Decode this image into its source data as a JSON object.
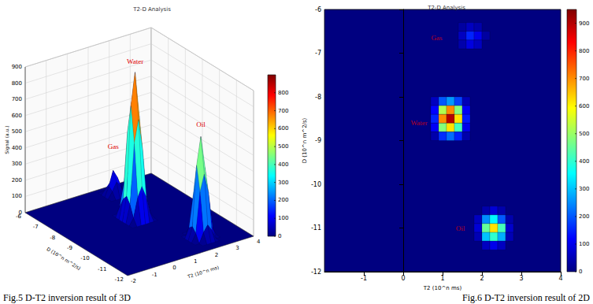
{
  "chart_data": [
    {
      "type": "surface3d",
      "title": "T2-D Analysis",
      "caption": "Fig.5 D-T2 inversion result of 3D",
      "x_label": "T2 (10^n ms)",
      "y_label": "D (10^n m^2/s)",
      "z_label": "Signal (a.u.)",
      "xlim": [
        -2,
        4
      ],
      "xticks": [
        -2,
        -1,
        0,
        1,
        2,
        3,
        4
      ],
      "ylim": [
        -12,
        -6
      ],
      "yticks": [
        -12,
        -11,
        -10,
        -9,
        -8,
        -7,
        -6
      ],
      "zlim": [
        0,
        900
      ],
      "zticks": [
        0,
        100,
        200,
        300,
        400,
        500,
        600,
        700,
        800,
        900
      ],
      "colorbar_lim": [
        0,
        900
      ],
      "colorbar_ticks": [
        0,
        100,
        200,
        300,
        400,
        500,
        600,
        700,
        800
      ],
      "cell_size": [
        0.2,
        0.2
      ],
      "cells": [
        [
          0.8,
          -8.1,
          60
        ],
        [
          1.0,
          -8.1,
          200
        ],
        [
          1.2,
          -8.1,
          260
        ],
        [
          1.4,
          -8.1,
          180
        ],
        [
          1.6,
          -8.1,
          50
        ],
        [
          0.8,
          -8.3,
          120
        ],
        [
          1.0,
          -8.3,
          520
        ],
        [
          1.2,
          -8.3,
          700
        ],
        [
          1.4,
          -8.3,
          480
        ],
        [
          1.6,
          -8.3,
          110
        ],
        [
          0.8,
          -8.5,
          150
        ],
        [
          1.0,
          -8.5,
          700
        ],
        [
          1.2,
          -8.5,
          900
        ],
        [
          1.4,
          -8.5,
          620
        ],
        [
          1.6,
          -8.5,
          140
        ],
        [
          0.8,
          -8.7,
          110
        ],
        [
          1.0,
          -8.7,
          480
        ],
        [
          1.2,
          -8.7,
          620
        ],
        [
          1.4,
          -8.7,
          420
        ],
        [
          1.6,
          -8.7,
          100
        ],
        [
          0.8,
          -8.9,
          40
        ],
        [
          1.0,
          -8.9,
          160
        ],
        [
          1.2,
          -8.9,
          220
        ],
        [
          1.4,
          -8.9,
          150
        ],
        [
          1.6,
          -8.9,
          40
        ],
        [
          1.5,
          -6.4,
          30
        ],
        [
          1.7,
          -6.4,
          60
        ],
        [
          1.9,
          -6.4,
          40
        ],
        [
          1.5,
          -6.6,
          60
        ],
        [
          1.7,
          -6.6,
          150
        ],
        [
          1.9,
          -6.6,
          100
        ],
        [
          2.1,
          -6.6,
          30
        ],
        [
          1.5,
          -6.8,
          40
        ],
        [
          1.7,
          -6.8,
          90
        ],
        [
          1.9,
          -6.8,
          60
        ],
        [
          2.1,
          -10.6,
          40
        ],
        [
          2.3,
          -10.6,
          80
        ],
        [
          2.5,
          -10.6,
          40
        ],
        [
          1.9,
          -10.8,
          60
        ],
        [
          2.1,
          -10.8,
          250
        ],
        [
          2.3,
          -10.8,
          350
        ],
        [
          2.5,
          -10.8,
          200
        ],
        [
          2.7,
          -10.8,
          40
        ],
        [
          1.9,
          -11.0,
          80
        ],
        [
          2.1,
          -11.0,
          450
        ],
        [
          2.3,
          -11.0,
          620
        ],
        [
          2.5,
          -11.0,
          420
        ],
        [
          2.7,
          -11.0,
          70
        ],
        [
          1.9,
          -11.2,
          50
        ],
        [
          2.1,
          -11.2,
          300
        ],
        [
          2.3,
          -11.2,
          400
        ],
        [
          2.5,
          -11.2,
          280
        ],
        [
          2.7,
          -11.2,
          50
        ],
        [
          2.1,
          -11.4,
          60
        ],
        [
          2.3,
          -11.4,
          100
        ],
        [
          2.5,
          -11.4,
          60
        ]
      ],
      "annotations": [
        {
          "text": "Gas",
          "x": 1.7,
          "y": -6.6,
          "z": 260
        },
        {
          "text": "Water",
          "x": 1.2,
          "y": -8.5,
          "z": 930
        },
        {
          "text": "Oil",
          "x": 2.3,
          "y": -11.0,
          "z": 660
        }
      ]
    },
    {
      "type": "heatmap",
      "title": "T2-D Analysis",
      "caption": "Fig.6 D-T2 inversion result of 2D",
      "x_label": "T2 (10^n ms)",
      "y_label": "D (10^n m^2/s)",
      "xlim": [
        -2,
        4
      ],
      "xticks": [
        -1,
        0,
        1,
        2,
        3,
        4
      ],
      "ylim": [
        -12,
        -6
      ],
      "yticks": [
        -12,
        -11,
        -10,
        -9,
        -8,
        -7,
        -6
      ],
      "colorbar_lim": [
        0,
        950
      ],
      "colorbar_ticks": [
        0,
        100,
        200,
        300,
        400,
        500,
        600,
        700,
        800,
        900
      ],
      "cell_size": [
        0.2,
        0.2
      ],
      "cells": [
        [
          0.8,
          -8.1,
          60
        ],
        [
          1.0,
          -8.1,
          200
        ],
        [
          1.2,
          -8.1,
          260
        ],
        [
          1.4,
          -8.1,
          180
        ],
        [
          1.6,
          -8.1,
          50
        ],
        [
          0.8,
          -8.3,
          120
        ],
        [
          1.0,
          -8.3,
          520
        ],
        [
          1.2,
          -8.3,
          700
        ],
        [
          1.4,
          -8.3,
          480
        ],
        [
          1.6,
          -8.3,
          110
        ],
        [
          0.8,
          -8.5,
          150
        ],
        [
          1.0,
          -8.5,
          700
        ],
        [
          1.2,
          -8.5,
          900
        ],
        [
          1.4,
          -8.5,
          620
        ],
        [
          1.6,
          -8.5,
          140
        ],
        [
          0.8,
          -8.7,
          110
        ],
        [
          1.0,
          -8.7,
          480
        ],
        [
          1.2,
          -8.7,
          620
        ],
        [
          1.4,
          -8.7,
          420
        ],
        [
          1.6,
          -8.7,
          100
        ],
        [
          0.8,
          -8.9,
          40
        ],
        [
          1.0,
          -8.9,
          160
        ],
        [
          1.2,
          -8.9,
          220
        ],
        [
          1.4,
          -8.9,
          150
        ],
        [
          1.6,
          -8.9,
          40
        ],
        [
          1.5,
          -6.4,
          30
        ],
        [
          1.7,
          -6.4,
          60
        ],
        [
          1.9,
          -6.4,
          40
        ],
        [
          1.5,
          -6.6,
          60
        ],
        [
          1.7,
          -6.6,
          150
        ],
        [
          1.9,
          -6.6,
          100
        ],
        [
          2.1,
          -6.6,
          30
        ],
        [
          1.5,
          -6.8,
          40
        ],
        [
          1.7,
          -6.8,
          90
        ],
        [
          1.9,
          -6.8,
          60
        ],
        [
          2.1,
          -10.6,
          40
        ],
        [
          2.3,
          -10.6,
          80
        ],
        [
          2.5,
          -10.6,
          40
        ],
        [
          1.9,
          -10.8,
          60
        ],
        [
          2.1,
          -10.8,
          250
        ],
        [
          2.3,
          -10.8,
          350
        ],
        [
          2.5,
          -10.8,
          200
        ],
        [
          2.7,
          -10.8,
          40
        ],
        [
          1.9,
          -11.0,
          80
        ],
        [
          2.1,
          -11.0,
          450
        ],
        [
          2.3,
          -11.0,
          620
        ],
        [
          2.5,
          -11.0,
          420
        ],
        [
          2.7,
          -11.0,
          70
        ],
        [
          1.9,
          -11.2,
          50
        ],
        [
          2.1,
          -11.2,
          300
        ],
        [
          2.3,
          -11.2,
          400
        ],
        [
          2.5,
          -11.2,
          280
        ],
        [
          2.7,
          -11.2,
          50
        ],
        [
          2.1,
          -11.4,
          60
        ],
        [
          2.3,
          -11.4,
          100
        ],
        [
          2.5,
          -11.4,
          60
        ]
      ],
      "annotations": [
        {
          "text": "Gas",
          "x": 0.85,
          "y": -6.65
        },
        {
          "text": "Water",
          "x": 0.4,
          "y": -8.6
        },
        {
          "text": "Oil",
          "x": 1.45,
          "y": -11.0
        }
      ]
    }
  ]
}
